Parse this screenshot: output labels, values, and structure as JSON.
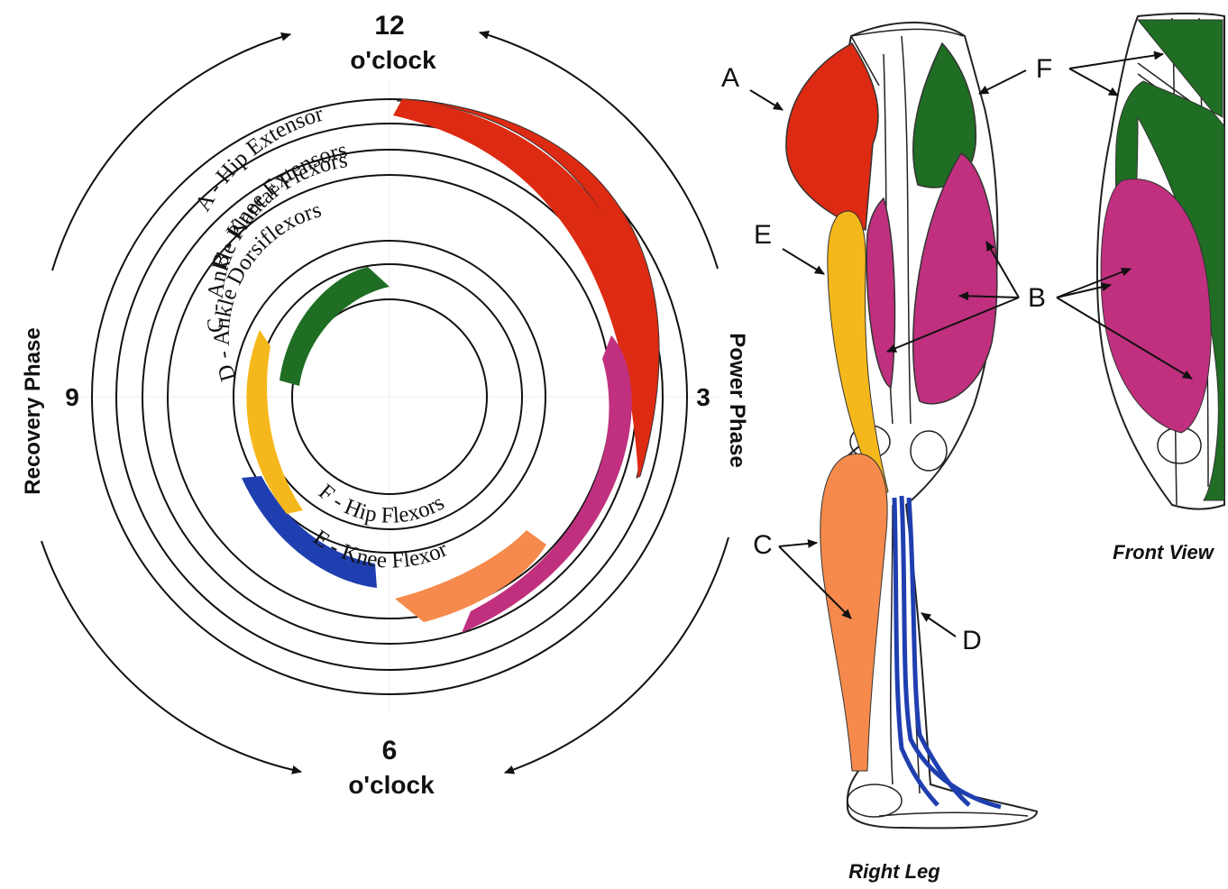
{
  "clock": {
    "twelve_num": "12",
    "twelve_label": "o'clock",
    "six_num": "6",
    "six_label": "o'clock",
    "three": "3",
    "nine": "9"
  },
  "phases": {
    "power": "Power Phase",
    "recovery": "Recovery Phase"
  },
  "rings": [
    "A - Hip Extensor",
    "B - Knee Extensors",
    "C - Ankle Plantar Flexors",
    "D - Ankle Dorsiflexors",
    "E - Knee Flexor",
    "F - Hip Flexors"
  ],
  "leg_letters": {
    "a": "A",
    "b_side": "B",
    "b_front": "B",
    "c": "C",
    "d": "D",
    "e": "E",
    "f": "F"
  },
  "captions": {
    "right_leg": "Right Leg",
    "front_view": "Front View"
  },
  "muscle_colors": {
    "hip_extensor": "#dd2a12",
    "knee_extensors": "#c0307e",
    "ankle_plantar_flexors": "#f58a4c",
    "ankle_dorsiflexors": "#1f3fb0",
    "knee_flexor": "#f5b81c",
    "hip_flexors": "#1f6e23"
  }
}
